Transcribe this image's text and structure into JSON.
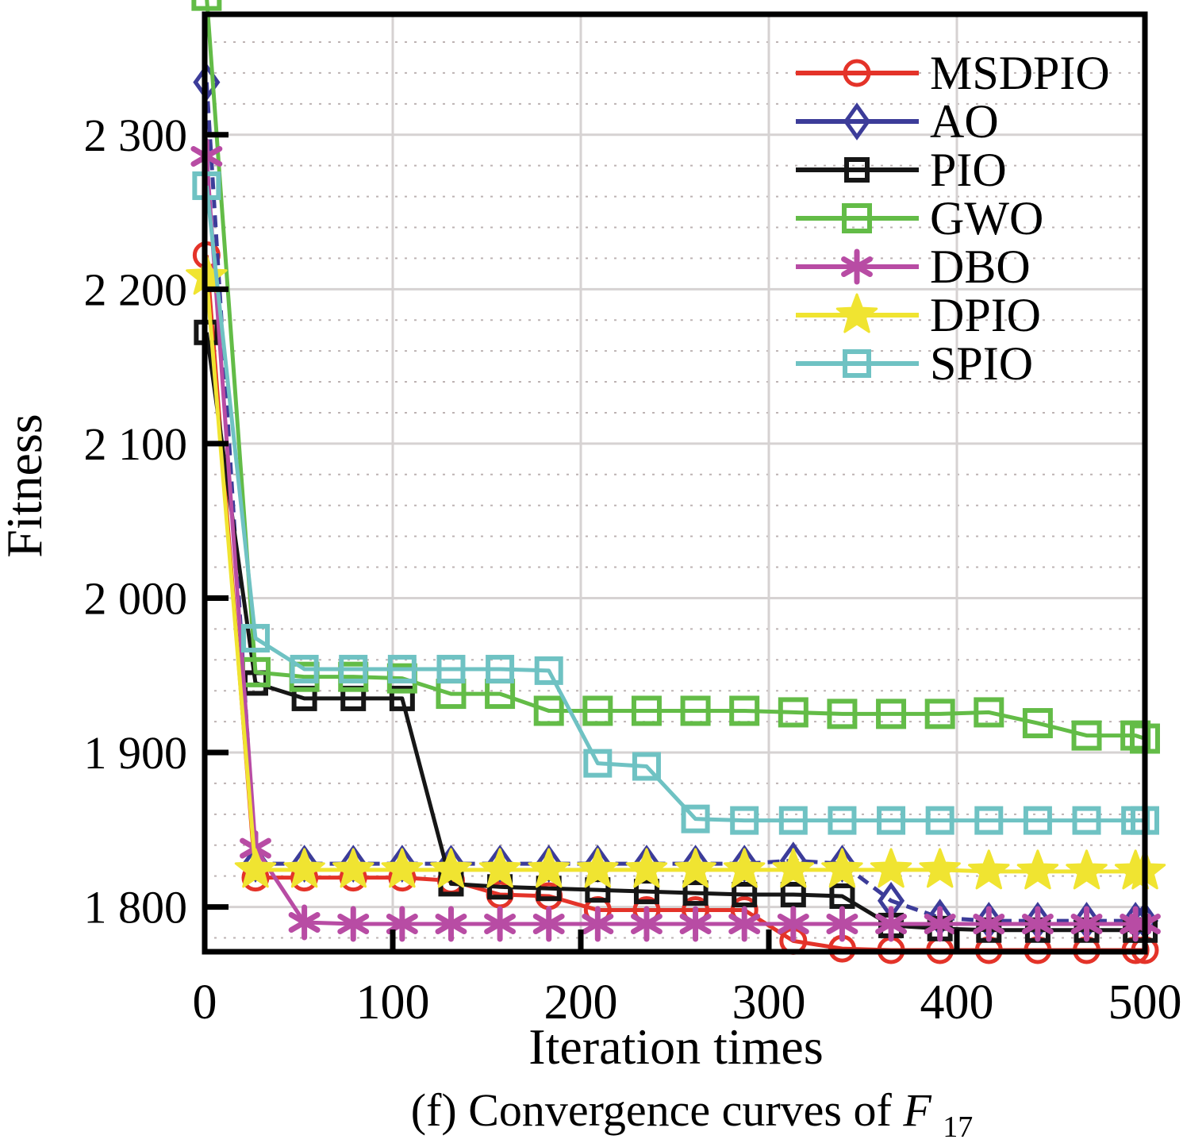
{
  "figure": {
    "y_axis_label": "Fitness",
    "x_axis_label": "Iteration times",
    "caption_prefix": "(f) Convergence curves of ",
    "caption_symbol": "F",
    "caption_subscript": "17"
  },
  "chart_data": {
    "type": "line",
    "title": "(f) Convergence curves of F17",
    "xlabel": "Iteration times",
    "ylabel": "Fitness",
    "xlim": [
      0,
      500
    ],
    "ylim": [
      1771,
      2378
    ],
    "grid": "on",
    "minor_grid_step": 20,
    "legend_position": "top-right",
    "x_ticks": {
      "values": [
        0,
        100,
        200,
        300,
        400,
        500
      ],
      "labels": [
        "0",
        "100",
        "200",
        "300",
        "400",
        "500"
      ]
    },
    "y_ticks": {
      "values": [
        1800,
        1900,
        2000,
        2100,
        2200,
        2300
      ],
      "labels": [
        "1 800",
        "1 900",
        "2 000",
        "2 100",
        "2 200",
        "2 300"
      ]
    },
    "x": [
      1,
      27,
      53,
      79,
      105,
      131,
      157,
      183,
      209,
      235,
      261,
      287,
      313,
      339,
      365,
      391,
      417,
      443,
      469,
      495,
      500
    ],
    "series": [
      {
        "name": "MSDPIO",
        "color": "#e43329",
        "marker": "circle",
        "marker_size": 15,
        "line_style": "solid",
        "values": [
          2222,
          1819,
          1819,
          1819,
          1819,
          1817,
          1808,
          1807,
          1798,
          1798,
          1798,
          1798,
          1778,
          1773,
          1772,
          1772,
          1772,
          1772,
          1772,
          1772,
          1772
        ]
      },
      {
        "name": "AO",
        "color": "#3c3c99",
        "marker": "diamond",
        "marker_size": 14,
        "line_style": "dashed",
        "values": [
          2334,
          1828,
          1828,
          1828,
          1828,
          1828,
          1828,
          1828,
          1828,
          1828,
          1828,
          1828,
          1830,
          1828,
          1804,
          1793,
          1791,
          1791,
          1791,
          1791,
          1791
        ]
      },
      {
        "name": "PIO",
        "color": "#161616",
        "marker": "square",
        "marker_size": 13,
        "line_style": "solid",
        "values": [
          2172,
          1945,
          1935,
          1935,
          1935,
          1815,
          1813,
          1812,
          1811,
          1810,
          1809,
          1808,
          1808,
          1807,
          1788,
          1786,
          1785,
          1785,
          1785,
          1785,
          1785
        ]
      },
      {
        "name": "GWO",
        "color": "#63bc47",
        "marker": "square",
        "marker_size": 16,
        "line_style": "solid",
        "values": [
          2390,
          1952,
          1949,
          1949,
          1948,
          1938,
          1938,
          1927,
          1927,
          1927,
          1927,
          1927,
          1926,
          1925,
          1925,
          1925,
          1926,
          1919,
          1911,
          1911,
          1909
        ]
      },
      {
        "name": "DBO",
        "color": "#b84ca4",
        "marker": "asterisk",
        "marker_size": 19,
        "line_style": "solid",
        "values": [
          2286,
          1838,
          1790,
          1789,
          1789,
          1789,
          1789,
          1789,
          1789,
          1789,
          1789,
          1789,
          1789,
          1789,
          1789,
          1789,
          1789,
          1789,
          1789,
          1789,
          1789
        ]
      },
      {
        "name": "DPIO",
        "color": "#f0e431",
        "marker": "star",
        "marker_size": 26,
        "line_style": "solid",
        "values": [
          2208,
          1824,
          1824,
          1824,
          1824,
          1824,
          1824,
          1824,
          1824,
          1824,
          1824,
          1824,
          1824,
          1824,
          1824,
          1824,
          1823,
          1823,
          1823,
          1823,
          1823
        ]
      },
      {
        "name": "SPIO",
        "color": "#6fc2c3",
        "marker": "square",
        "marker_size": 15,
        "line_style": "solid",
        "values": [
          2267,
          1974,
          1954,
          1954,
          1954,
          1954,
          1954,
          1953,
          1893,
          1891,
          1857,
          1856,
          1856,
          1856,
          1856,
          1856,
          1856,
          1856,
          1856,
          1856,
          1856
        ]
      }
    ]
  }
}
